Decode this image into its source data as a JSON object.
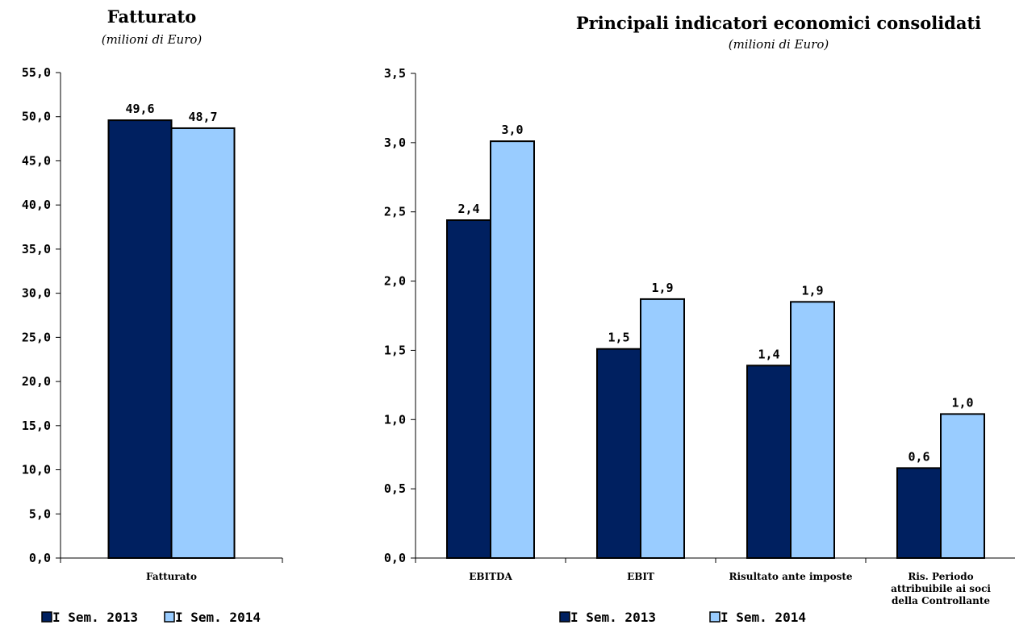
{
  "colors": {
    "s2013": "#002060",
    "s2014": "#99CCFF",
    "stroke": "#000000"
  },
  "chart_data": [
    {
      "type": "bar",
      "title": "Fatturato",
      "subtitle": "(milioni di Euro)",
      "categories": [
        "Fatturato"
      ],
      "series": [
        {
          "name": "I Sem. 2013",
          "values": [
            49.6
          ],
          "labels": [
            "49,6"
          ]
        },
        {
          "name": "I Sem. 2014",
          "values": [
            48.7
          ],
          "labels": [
            "48,7"
          ]
        }
      ],
      "yticks": [
        "0,0",
        "5,0",
        "10,0",
        "15,0",
        "20,0",
        "25,0",
        "30,0",
        "35,0",
        "40,0",
        "45,0",
        "50,0",
        "55,0"
      ],
      "ylim": [
        0,
        55
      ],
      "grid": false,
      "legend_position": "bottom-left"
    },
    {
      "type": "bar",
      "title": "Principali indicatori economici consolidati",
      "subtitle": "(milioni di Euro)",
      "categories": [
        "EBITDA",
        "EBIT",
        "Risultato ante imposte",
        [
          "Ris. Periodo",
          "attribuibile ai soci",
          "della Controllante"
        ]
      ],
      "series": [
        {
          "name": "I Sem. 2013",
          "values": [
            2.44,
            1.51,
            1.39,
            0.65
          ],
          "labels": [
            "2,4",
            "1,5",
            "1,4",
            "0,6"
          ]
        },
        {
          "name": "I Sem. 2014",
          "values": [
            3.01,
            1.87,
            1.85,
            1.04
          ],
          "labels": [
            "3,0",
            "1,9",
            "1,9",
            "1,0"
          ]
        }
      ],
      "yticks": [
        "0,0",
        "0,5",
        "1,0",
        "1,5",
        "2,0",
        "2,5",
        "3,0",
        "3,5"
      ],
      "ylim": [
        0,
        3.5
      ],
      "grid": false,
      "legend_position": "bottom-center"
    }
  ]
}
